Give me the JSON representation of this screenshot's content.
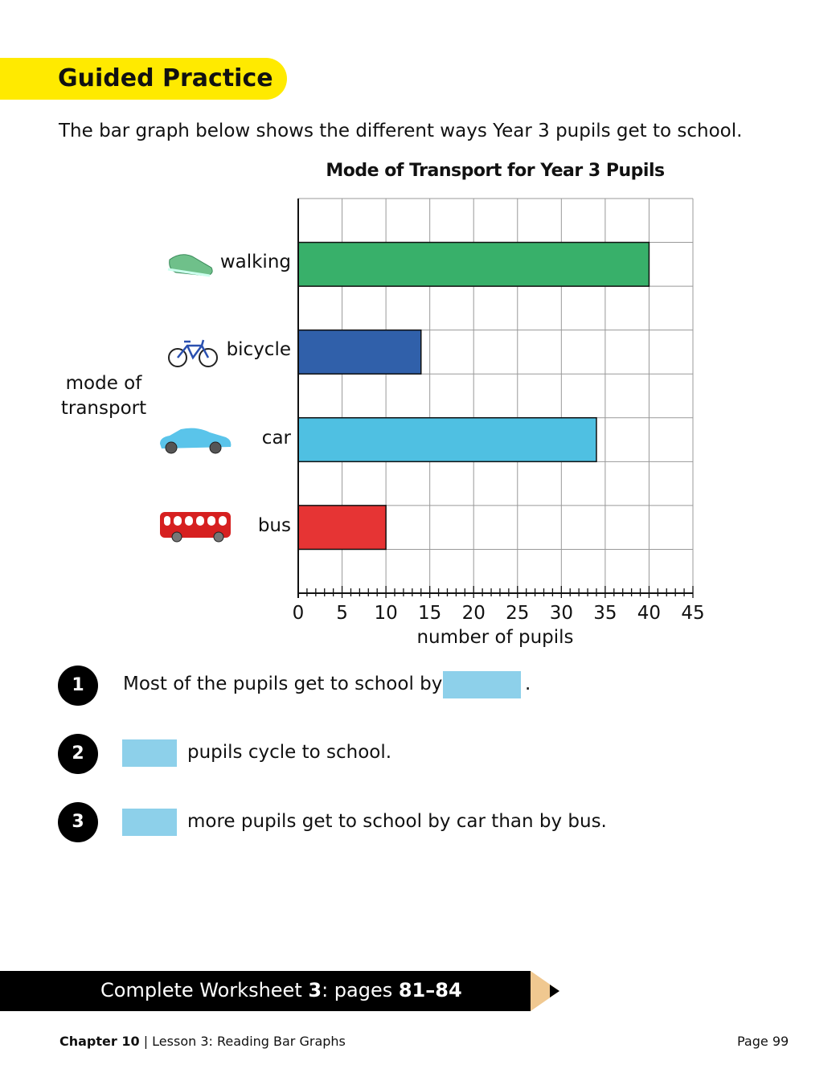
{
  "header": {
    "banner": "Guided Practice",
    "intro": "The bar graph below shows the different ways Year 3 pupils get to school."
  },
  "chart_data": {
    "type": "bar",
    "orientation": "horizontal",
    "title": "Mode of Transport for Year 3 Pupils",
    "categories": [
      "walking",
      "bicycle",
      "car",
      "bus"
    ],
    "values": [
      40,
      14,
      34,
      10
    ],
    "colors": [
      "#38b06a",
      "#3060aa",
      "#4fc0e2",
      "#e63434"
    ],
    "icons": [
      "shoe-icon",
      "bicycle-icon",
      "car-icon",
      "bus-icon"
    ],
    "xlabel": "number of pupils",
    "ylabel": "mode of transport",
    "xlim": [
      0,
      45
    ],
    "xticks": [
      0,
      5,
      10,
      15,
      20,
      25,
      30,
      35,
      40,
      45
    ],
    "grid": true
  },
  "questions": [
    {
      "n": "1",
      "before": "Most of the pupils get to school by",
      "after": "."
    },
    {
      "n": "2",
      "after": "pupils cycle to school."
    },
    {
      "n": "3",
      "after": "more pupils get to school by car than by bus."
    }
  ],
  "footer": {
    "w1": "Complete Worksheet ",
    "w2": "3",
    "w3": ": pages ",
    "w4": "81–84",
    "chapter": "Chapter 10",
    "lesson": "Lesson 3: Reading Bar Graphs",
    "page": "Page 99"
  },
  "colors": {
    "banner": "#ffea00",
    "answer_box": "#8dd0ea",
    "pencil": "#f0c890"
  }
}
